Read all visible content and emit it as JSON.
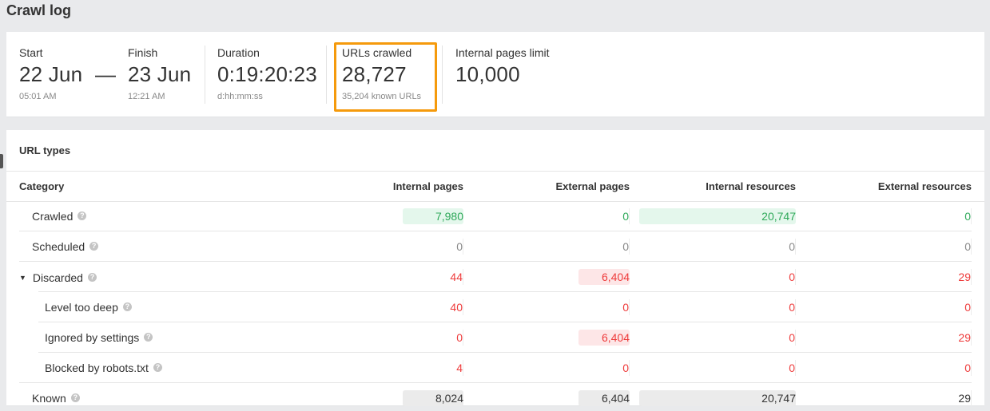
{
  "page": {
    "title": "Crawl log"
  },
  "summary": {
    "start": {
      "label": "Start",
      "value": "22 Jun",
      "sub": "05:01 AM"
    },
    "separator": "—",
    "finish": {
      "label": "Finish",
      "value": "23 Jun",
      "sub": "12:21 AM"
    },
    "duration": {
      "label": "Duration",
      "value": "0:19:20:23",
      "sub": "d:hh:mm:ss"
    },
    "urls_crawled": {
      "label": "URLs crawled",
      "value": "28,727",
      "sub": "35,204 known URLs",
      "highlight_color": "#f59a0c"
    },
    "internal_limit": {
      "label": "Internal pages limit",
      "value": "10,000"
    }
  },
  "url_types": {
    "title": "URL types",
    "columns": [
      "Category",
      "Internal pages",
      "External pages",
      "Internal resources",
      "External resources"
    ],
    "rows": [
      {
        "label": "Crawled",
        "indent": 1,
        "values": [
          "7,980",
          "0",
          "20,747",
          "0"
        ],
        "color": "green",
        "bg": [
          "green",
          "",
          "green",
          ""
        ]
      },
      {
        "label": "Scheduled",
        "indent": 1,
        "values": [
          "0",
          "0",
          "0",
          "0"
        ],
        "color": "grey",
        "bg": [
          "",
          "",
          "",
          ""
        ]
      },
      {
        "label": "Discarded",
        "indent": 0,
        "expanded": true,
        "values": [
          "44",
          "6,404",
          "0",
          "29"
        ],
        "color": "red",
        "bg": [
          "",
          "red",
          "",
          ""
        ]
      },
      {
        "label": "Level too deep",
        "indent": 2,
        "values": [
          "40",
          "0",
          "0",
          "0"
        ],
        "color": "red",
        "bg": [
          "",
          "",
          "",
          ""
        ]
      },
      {
        "label": "Ignored by settings",
        "indent": 2,
        "values": [
          "0",
          "6,404",
          "0",
          "29"
        ],
        "color": "red",
        "bg": [
          "",
          "red",
          "",
          ""
        ]
      },
      {
        "label": "Blocked by robots.txt",
        "indent": 2,
        "values": [
          "4",
          "0",
          "0",
          "0"
        ],
        "color": "red",
        "bg": [
          "",
          "",
          "",
          ""
        ]
      },
      {
        "label": "Known",
        "indent": 1,
        "values": [
          "8,024",
          "6,404",
          "20,747",
          "29"
        ],
        "color": "dark",
        "bg": [
          "grey",
          "grey",
          "grey",
          ""
        ]
      }
    ]
  },
  "icons": {
    "help": "?",
    "caret_down": "▼"
  },
  "colors": {
    "green": "#2fa95a",
    "red": "#ee3b3b",
    "highlight": "#f59a0c"
  }
}
